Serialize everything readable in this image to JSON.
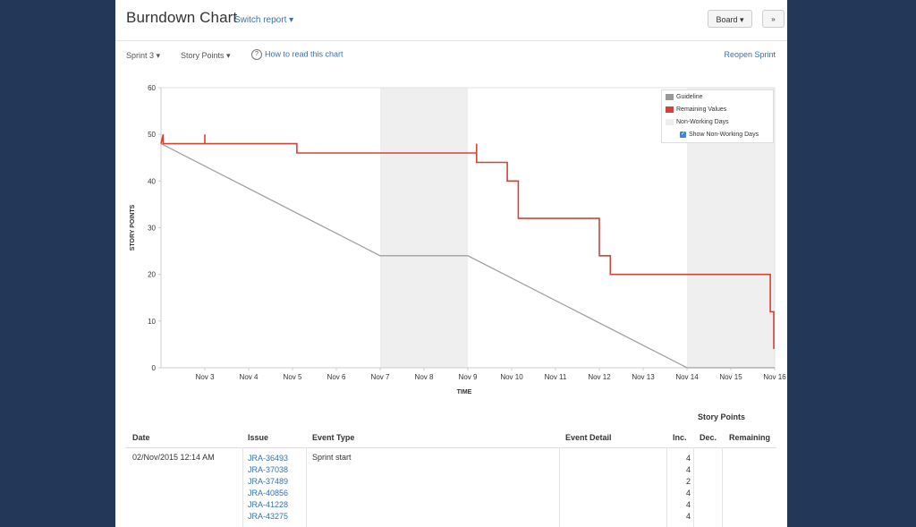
{
  "header": {
    "title": "Burndown Chart",
    "switch_report": "Switch report ▾",
    "board_button": "Board ▾",
    "collapse_icon": "»"
  },
  "toolbar": {
    "sprint": "Sprint 3 ▾",
    "points": "Story Points ▾",
    "how_to": "How to read this chart",
    "reopen": "Reopen Sprint"
  },
  "legend": {
    "guideline": "Guideline",
    "remaining": "Remaining Values",
    "non_working": "Non-Working Days",
    "show_non_working": "Show Non-Working Days"
  },
  "chart_data": {
    "type": "line",
    "xlabel": "TIME",
    "ylabel": "STORY POINTS",
    "ylim": [
      0,
      60
    ],
    "yticks": [
      0,
      10,
      20,
      30,
      40,
      50,
      60
    ],
    "x_domain": [
      2,
      16
    ],
    "xticks": [
      {
        "x": 3,
        "label": "Nov 3"
      },
      {
        "x": 4,
        "label": "Nov 4"
      },
      {
        "x": 5,
        "label": "Nov 5"
      },
      {
        "x": 6,
        "label": "Nov 6"
      },
      {
        "x": 7,
        "label": "Nov 7"
      },
      {
        "x": 8,
        "label": "Nov 8"
      },
      {
        "x": 9,
        "label": "Nov 9"
      },
      {
        "x": 10,
        "label": "Nov 10"
      },
      {
        "x": 11,
        "label": "Nov 11"
      },
      {
        "x": 12,
        "label": "Nov 12"
      },
      {
        "x": 13,
        "label": "Nov 13"
      },
      {
        "x": 14,
        "label": "Nov 14"
      },
      {
        "x": 15,
        "label": "Nov 15"
      },
      {
        "x": 16,
        "label": "Nov 16"
      }
    ],
    "non_working_days": [
      [
        7,
        9
      ],
      [
        14,
        16
      ]
    ],
    "series": [
      {
        "name": "Guideline",
        "color": "#a0a0a0",
        "points": [
          [
            2,
            48
          ],
          [
            7,
            24
          ],
          [
            9,
            24
          ],
          [
            14,
            0
          ],
          [
            16,
            0
          ]
        ]
      },
      {
        "name": "Remaining Values",
        "color": "#d04437",
        "step": true,
        "points": [
          [
            2,
            48
          ],
          [
            2.05,
            50
          ],
          [
            2.05,
            48
          ],
          [
            3,
            48
          ],
          [
            3,
            50
          ],
          [
            3,
            48
          ],
          [
            5.1,
            48
          ],
          [
            5.1,
            46
          ],
          [
            9.2,
            46
          ],
          [
            9.2,
            48
          ],
          [
            9.2,
            44
          ],
          [
            9.9,
            44
          ],
          [
            9.9,
            40
          ],
          [
            10.15,
            40
          ],
          [
            10.15,
            32
          ],
          [
            12,
            32
          ],
          [
            12,
            24
          ],
          [
            12.25,
            24
          ],
          [
            12.25,
            20
          ],
          [
            15.9,
            20
          ],
          [
            15.9,
            12
          ],
          [
            15.98,
            12
          ],
          [
            15.98,
            4
          ]
        ]
      }
    ]
  },
  "story_points_header": "Story Points",
  "table": {
    "headers": {
      "date": "Date",
      "issue": "Issue",
      "event_type": "Event Type",
      "event_detail": "Event Detail",
      "inc": "Inc.",
      "dec": "Dec.",
      "remaining": "Remaining"
    },
    "rows": [
      {
        "date": "02/Nov/2015 12:14 AM",
        "event_type": "Sprint start",
        "issues": [
          "JRA-36493",
          "JRA-37038",
          "JRA-37489",
          "JRA-40856",
          "JRA-41228",
          "JRA-43275"
        ],
        "inc": [
          "4",
          "4",
          "2",
          "4",
          "4",
          "4"
        ]
      }
    ]
  }
}
